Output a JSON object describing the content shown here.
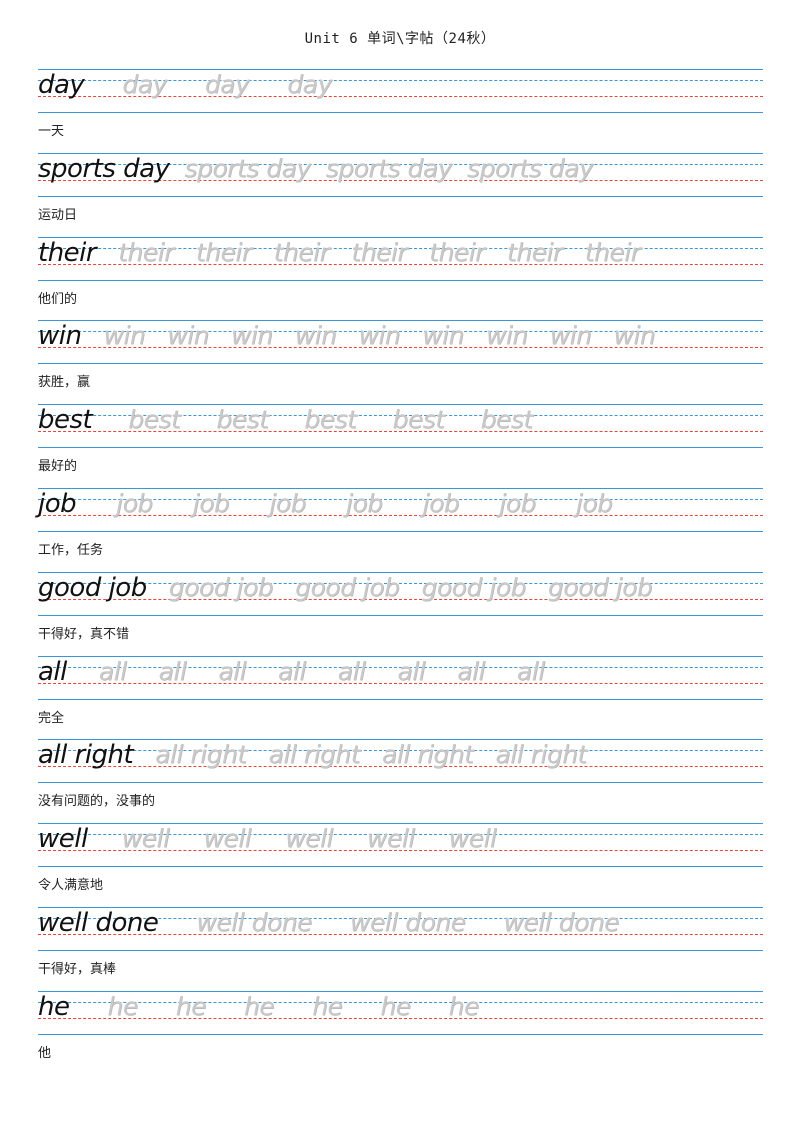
{
  "title": "Unit 6 单词\\字帖（24秋）",
  "entries": [
    {
      "word": "day",
      "meaning": "一天",
      "repeat": 3
    },
    {
      "word": "sports day",
      "meaning": "运动日",
      "repeat": 3
    },
    {
      "word": "their",
      "meaning": "他们的",
      "repeat": 7
    },
    {
      "word": "win",
      "meaning": "获胜，赢",
      "repeat": 9
    },
    {
      "word": "best",
      "meaning": "最好的",
      "repeat": 5
    },
    {
      "word": "job",
      "meaning": "工作，任务",
      "repeat": 7
    },
    {
      "word": "good job",
      "meaning": "干得好，真不错",
      "repeat": 4
    },
    {
      "word": "all",
      "meaning": "完全",
      "repeat": 8
    },
    {
      "word": "all right",
      "meaning": "没有问题的，没事的",
      "repeat": 4
    },
    {
      "word": "well",
      "meaning": "令人满意地",
      "repeat": 5
    },
    {
      "word": "well done",
      "meaning": "干得好，真棒",
      "repeat": 3
    },
    {
      "word": "he",
      "meaning": "他",
      "repeat": 6
    }
  ]
}
